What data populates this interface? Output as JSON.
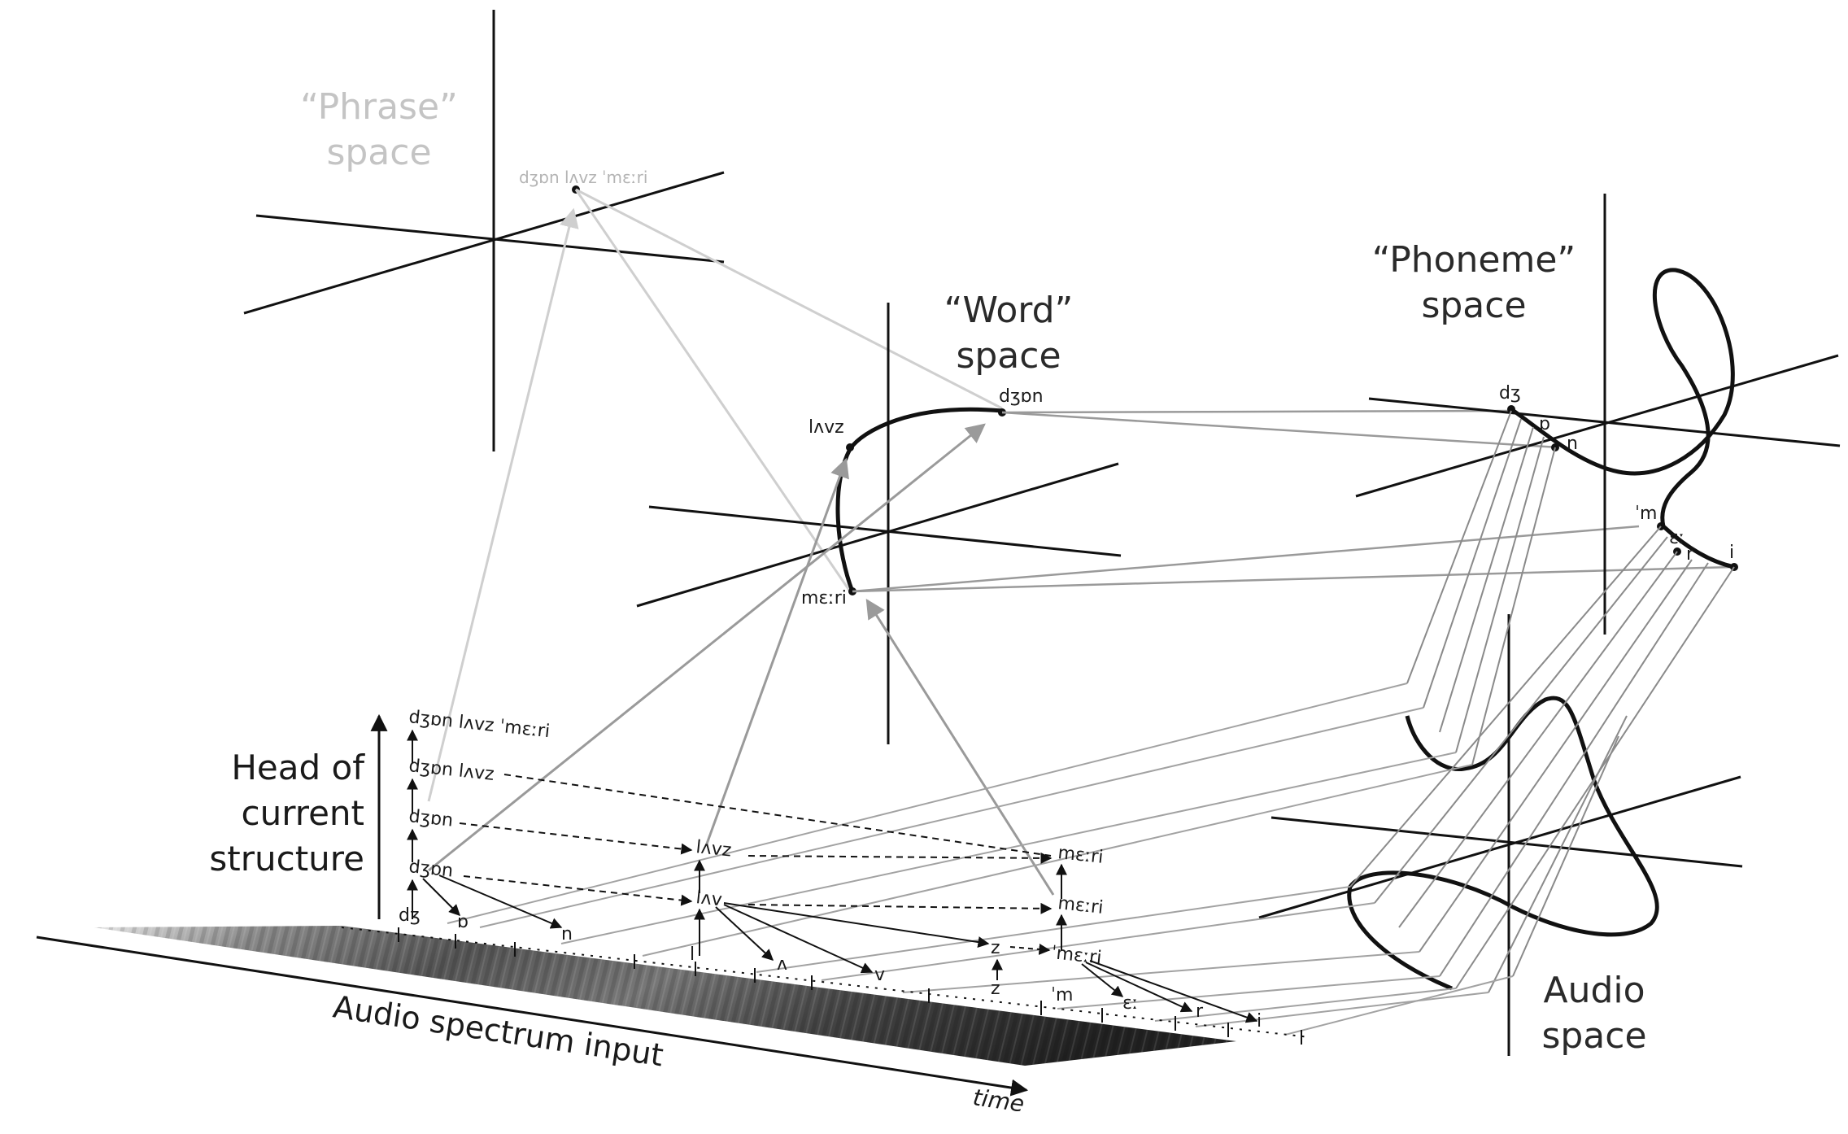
{
  "spaces": {
    "phrase": {
      "title_line1": "“Phrase”",
      "title_line2": "space",
      "point_label": "dʒɒn lʌvz ˈmɛːri"
    },
    "word": {
      "title_line1": "“Word”",
      "title_line2": "space",
      "labels": {
        "john": "dʒɒn",
        "loves": "lʌvz",
        "mary": "mɛːri"
      }
    },
    "phoneme": {
      "title_line1": "“Phoneme”",
      "title_line2": "space",
      "labels": {
        "dz": "dʒ",
        "o": "ɒ",
        "n": "n",
        "m": "ˈm",
        "e": "ɛː",
        "r": "r",
        "i": "i"
      }
    },
    "audio": {
      "title_line1": "Audio",
      "title_line2": "space"
    }
  },
  "axis_labels": {
    "head": {
      "line1": "Head of",
      "line2": "current",
      "line3": "structure"
    },
    "audio_input": "Audio spectrum input",
    "time": "time"
  },
  "structure_levels": {
    "level4": "dʒɒn lʌvz ˈmɛːri",
    "level3": "dʒɒn lʌvz",
    "level2": "dʒɒn",
    "level1a": "dʒɒn",
    "loves_word": "lʌvz",
    "loves_partial": "lʌv",
    "mary_word": "mɛːri",
    "mary_partial": "mɛːri",
    "mary_stressed": "ˈmɛːri",
    "z_upper": "z",
    "z_lower": "z"
  },
  "phones": {
    "dz": "dʒ",
    "o": "ɒ",
    "n": "n",
    "l": "l",
    "a": "ʌ",
    "v": "v",
    "m": "ˈm",
    "e": "ɛː",
    "r": "r",
    "i": "i"
  },
  "colors": {
    "ink": "#111111",
    "gray_arrow": "#9a9a9a",
    "light_arrow": "#cfcfcf",
    "faint_text": "#c4c4c4"
  }
}
